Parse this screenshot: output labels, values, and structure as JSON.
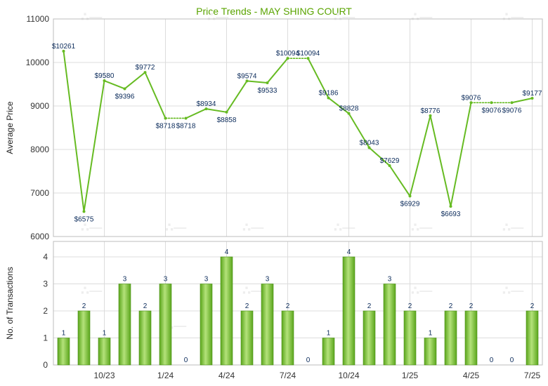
{
  "chart_data": [
    {
      "type": "line",
      "title": "Price Trends - MAY SHING COURT",
      "ylabel": "Average Price",
      "ylim": [
        6000,
        11000
      ],
      "yticks": [
        6000,
        7000,
        8000,
        9000,
        10000,
        11000
      ],
      "grid": true,
      "series": [
        {
          "values": [
            10261,
            6575,
            9580,
            9396,
            9772,
            8718,
            8718,
            8934,
            8858,
            9574,
            9533,
            10094,
            10094,
            9186,
            8828,
            8043,
            7629,
            6929,
            8776,
            6693,
            9076,
            9076,
            9076,
            9177
          ],
          "labels": [
            "$10261",
            "$6575",
            "$9580",
            "$9396",
            "$9772",
            "$8718",
            "$8718",
            "$8934",
            "$8858",
            "$9574",
            "$9533",
            "$10094",
            "$10094",
            "$9186",
            "$8828",
            "$8043",
            "$7629",
            "$6929",
            "$8776",
            "$6693",
            "$9076",
            "$9076",
            "$9076",
            "$9177"
          ]
        }
      ],
      "interpolated_segments": [
        [
          5,
          6
        ],
        [
          11,
          12
        ],
        [
          20,
          21
        ],
        [
          21,
          22
        ]
      ],
      "line_color": "#66bb22"
    },
    {
      "type": "bar",
      "ylabel": "No. of Transactions",
      "ylim": [
        0,
        4
      ],
      "yticks": [
        0,
        1,
        2,
        3,
        4
      ],
      "x_tick_labels": [
        "10/23",
        "1/24",
        "4/24",
        "7/24",
        "10/24",
        "1/25",
        "4/25",
        "7/25"
      ],
      "x_tick_months": [
        2,
        5,
        8,
        11,
        14,
        17,
        20,
        23
      ],
      "values": [
        1,
        2,
        1,
        3,
        2,
        3,
        0,
        3,
        4,
        2,
        3,
        2,
        0,
        1,
        4,
        2,
        3,
        2,
        1,
        2,
        2,
        0,
        0,
        2
      ],
      "bar_color": "#7cc431"
    }
  ]
}
